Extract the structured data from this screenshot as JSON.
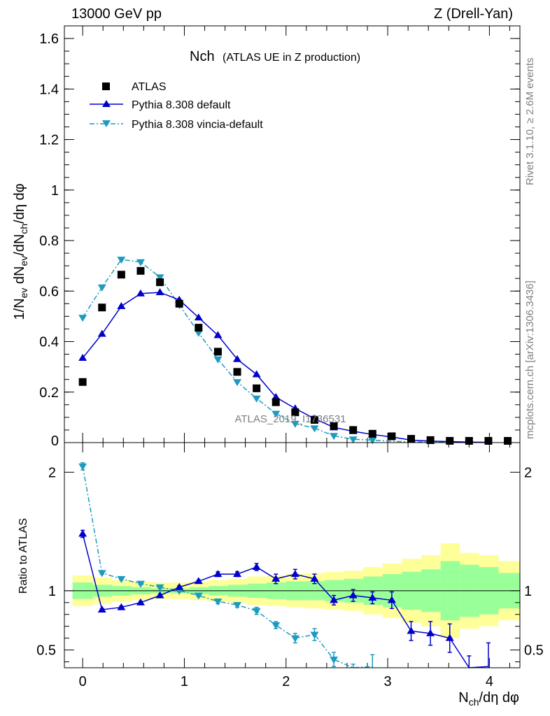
{
  "header": {
    "left": "13000 GeV pp",
    "right": "Z (Drell-Yan)"
  },
  "side_labels": {
    "top": "Rivet 3.1.10, ≥ 2.6M events",
    "bottom": "mcplots.cern.ch [arXiv:1306.3436]"
  },
  "watermark": "ATLAS_2019_I1736531",
  "colors": {
    "data": "#000000",
    "pythia_default": "#0000cc",
    "vincia": "#1c9bbf",
    "band_inner": "#99ff99",
    "band_outer": "#ffff99"
  },
  "chart_data": [
    {
      "type": "scatter",
      "panel": "main",
      "title": "Nch",
      "subtitle": "(ATLAS UE in Z production)",
      "ylabel": "1/N_ev dN_ev/dN_ch/dη dφ",
      "xlabel": "N_ch/dη dφ",
      "xlim": [
        -0.18,
        4.3
      ],
      "ylim": [
        0,
        1.65
      ],
      "xticks": [
        "0",
        "1",
        "2",
        "3",
        "4"
      ],
      "yticks": [
        "0",
        "0.2",
        "0.4",
        "0.6",
        "0.8",
        "1",
        "1.2",
        "1.4",
        "1.6"
      ],
      "legend_position": "top-left",
      "series": [
        {
          "name": "ATLAS",
          "marker": "square",
          "x": [
            0,
            0.19,
            0.38,
            0.57,
            0.76,
            0.95,
            1.14,
            1.33,
            1.52,
            1.71,
            1.9,
            2.09,
            2.28,
            2.47,
            2.66,
            2.85,
            3.04,
            3.23,
            3.42,
            3.61,
            3.8,
            3.99,
            4.18
          ],
          "y": [
            0.24,
            0.535,
            0.665,
            0.68,
            0.635,
            0.55,
            0.455,
            0.36,
            0.28,
            0.215,
            0.16,
            0.12,
            0.09,
            0.065,
            0.05,
            0.035,
            0.025,
            0.015,
            0.01,
            0.007,
            0.005,
            0.003,
            0.002
          ]
        },
        {
          "name": "Pythia 8.308 default",
          "marker": "triangle-up",
          "x": [
            0,
            0.19,
            0.38,
            0.57,
            0.76,
            0.95,
            1.14,
            1.33,
            1.52,
            1.71,
            1.9,
            2.09,
            2.28,
            2.47,
            2.66,
            2.85,
            3.04,
            3.23,
            3.42,
            3.61,
            3.8,
            3.99
          ],
          "y": [
            0.335,
            0.43,
            0.54,
            0.59,
            0.595,
            0.565,
            0.495,
            0.425,
            0.33,
            0.27,
            0.18,
            0.135,
            0.095,
            0.06,
            0.045,
            0.032,
            0.022,
            0.01,
            0.006,
            0.004,
            0.002,
            0.001
          ]
        },
        {
          "name": "Pythia 8.308 vincia-default",
          "marker": "triangle-down",
          "x": [
            0,
            0.19,
            0.38,
            0.57,
            0.76,
            0.95,
            1.14,
            1.33,
            1.52,
            1.71,
            1.9,
            2.09,
            2.28,
            2.47,
            2.66,
            2.85,
            3.04,
            3.23,
            3.42,
            3.61,
            3.8,
            3.99
          ],
          "y": [
            0.495,
            0.615,
            0.725,
            0.715,
            0.655,
            0.545,
            0.435,
            0.33,
            0.24,
            0.175,
            0.115,
            0.075,
            0.057,
            0.027,
            0.013,
            0.01,
            0.005,
            0.003,
            0.002,
            0.001,
            0.001,
            0.0005
          ]
        }
      ]
    },
    {
      "type": "line",
      "panel": "ratio",
      "ylabel": "Ratio to ATLAS",
      "xlim": [
        -0.18,
        4.3
      ],
      "ylim": [
        0.35,
        2.25
      ],
      "yticks": [
        "0.5",
        "1",
        "2"
      ],
      "bands": {
        "edges": [
          -0.1,
          0.1,
          0.29,
          0.48,
          0.67,
          0.86,
          1.05,
          1.24,
          1.43,
          1.62,
          1.81,
          2.0,
          2.19,
          2.38,
          2.57,
          2.76,
          2.95,
          3.14,
          3.33,
          3.52,
          3.71,
          3.9,
          4.09,
          4.3
        ],
        "inner_low": [
          0.93,
          0.95,
          0.96,
          0.97,
          0.98,
          0.98,
          0.97,
          0.96,
          0.95,
          0.94,
          0.93,
          0.92,
          0.92,
          0.91,
          0.9,
          0.88,
          0.86,
          0.84,
          0.82,
          0.75,
          0.78,
          0.8,
          0.85
        ],
        "inner_high": [
          1.07,
          1.05,
          1.04,
          1.03,
          1.02,
          1.02,
          1.03,
          1.04,
          1.05,
          1.06,
          1.07,
          1.08,
          1.08,
          1.09,
          1.1,
          1.12,
          1.14,
          1.16,
          1.18,
          1.25,
          1.22,
          1.2,
          1.15
        ],
        "outer_low": [
          0.87,
          0.89,
          0.91,
          0.92,
          0.93,
          0.93,
          0.92,
          0.91,
          0.9,
          0.88,
          0.87,
          0.86,
          0.85,
          0.84,
          0.83,
          0.8,
          0.77,
          0.73,
          0.7,
          0.6,
          0.68,
          0.7,
          0.75
        ],
        "outer_high": [
          1.13,
          1.11,
          1.09,
          1.08,
          1.07,
          1.07,
          1.08,
          1.09,
          1.1,
          1.12,
          1.13,
          1.14,
          1.15,
          1.16,
          1.17,
          1.2,
          1.23,
          1.27,
          1.3,
          1.4,
          1.32,
          1.3,
          1.25
        ]
      },
      "series": [
        {
          "name": "Pythia 8.308 default",
          "x": [
            0,
            0.19,
            0.38,
            0.57,
            0.76,
            0.95,
            1.14,
            1.33,
            1.52,
            1.71,
            1.9,
            2.09,
            2.28,
            2.47,
            2.66,
            2.85,
            3.04,
            3.23,
            3.42,
            3.61,
            3.8,
            3.99
          ],
          "y": [
            1.48,
            0.84,
            0.86,
            0.9,
            0.96,
            1.03,
            1.08,
            1.14,
            1.14,
            1.2,
            1.1,
            1.14,
            1.1,
            0.92,
            0.96,
            0.94,
            0.92,
            0.66,
            0.64,
            0.6,
            0.3,
            0.36
          ],
          "err": [
            0.03,
            0.01,
            0.01,
            0.01,
            0.01,
            0.01,
            0.01,
            0.02,
            0.02,
            0.03,
            0.04,
            0.04,
            0.04,
            0.04,
            0.05,
            0.05,
            0.07,
            0.08,
            0.1,
            0.12,
            0.15,
            0.2
          ]
        },
        {
          "name": "Pythia 8.308 vincia-default",
          "x": [
            0,
            0.19,
            0.38,
            0.57,
            0.76,
            0.95,
            1.14,
            1.33,
            1.52,
            1.71,
            1.9,
            2.09,
            2.28,
            2.47,
            2.66,
            2.85
          ],
          "y": [
            2.05,
            1.15,
            1.1,
            1.06,
            1.03,
            1.0,
            0.96,
            0.91,
            0.88,
            0.83,
            0.71,
            0.6,
            0.63,
            0.42,
            0.3,
            0.36
          ],
          "err": [
            0.03,
            0.01,
            0.01,
            0.01,
            0.01,
            0.01,
            0.01,
            0.02,
            0.02,
            0.03,
            0.03,
            0.04,
            0.05,
            0.06,
            0.08,
            0.1
          ]
        }
      ]
    }
  ]
}
